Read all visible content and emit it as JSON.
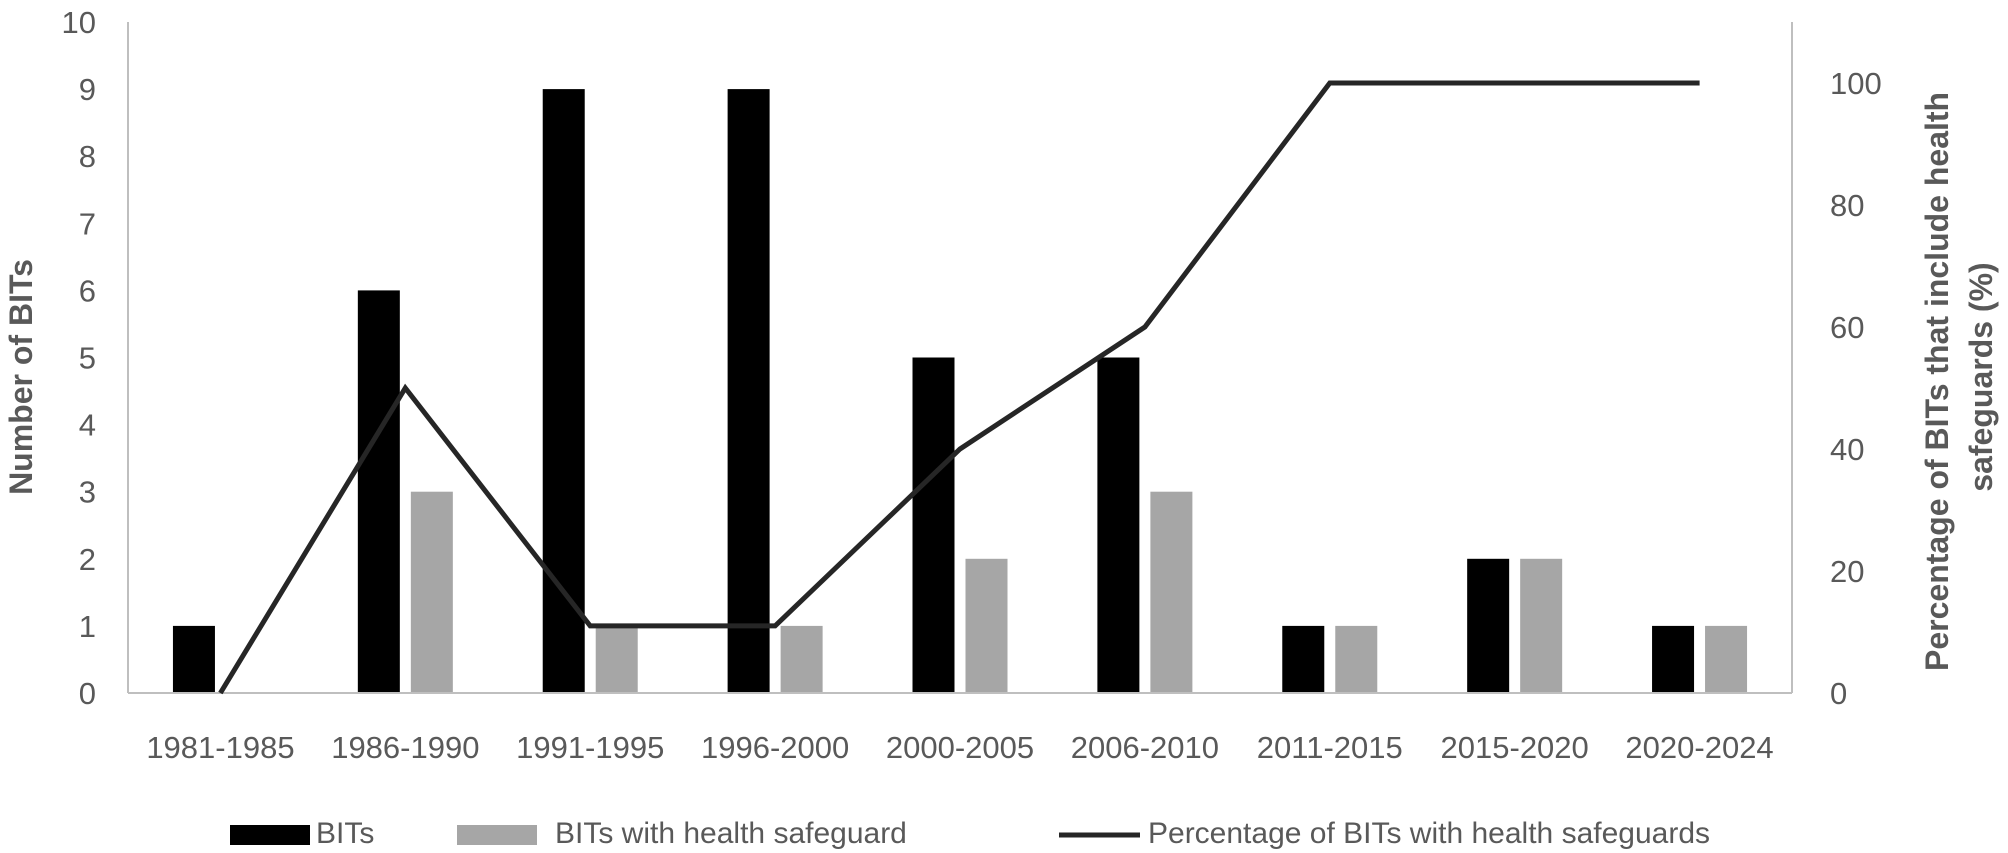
{
  "chart_data": {
    "type": "bar",
    "categories": [
      "1981-1985",
      "1986-1990",
      "1991-1995",
      "1996-2000",
      "2000-2005",
      "2006-2010",
      "2011-2015",
      "2015-2020",
      "2020-2024"
    ],
    "series": [
      {
        "name": "BITs",
        "kind": "bar",
        "axis": "left",
        "color": "#000000",
        "values": [
          1,
          6,
          9,
          9,
          5,
          5,
          1,
          2,
          1
        ]
      },
      {
        "name": "BITs with health safeguard",
        "kind": "bar",
        "axis": "left",
        "color": "#a6a6a6",
        "values": [
          0,
          3,
          1,
          1,
          2,
          3,
          1,
          2,
          1
        ]
      },
      {
        "name": "Percentage of BITs with health safeguards",
        "kind": "line",
        "axis": "right",
        "color": "#262626",
        "values": [
          0,
          50,
          11,
          11,
          40,
          60,
          100,
          100,
          100
        ]
      }
    ],
    "y_left": {
      "label": "Number of BITs",
      "min": 0,
      "max": 10,
      "ticks": [
        "0",
        "1",
        "2",
        "3",
        "4",
        "5",
        "6",
        "7",
        "8",
        "9",
        "10"
      ]
    },
    "y_right": {
      "label_lines": [
        "Percentage of BITs that include health",
        "safeguards (%)"
      ],
      "min": 0,
      "max": 110,
      "ticks": [
        "0",
        "20",
        "40",
        "60",
        "80",
        "100"
      ]
    },
    "grid": false,
    "legend": {
      "position": "bottom"
    }
  }
}
